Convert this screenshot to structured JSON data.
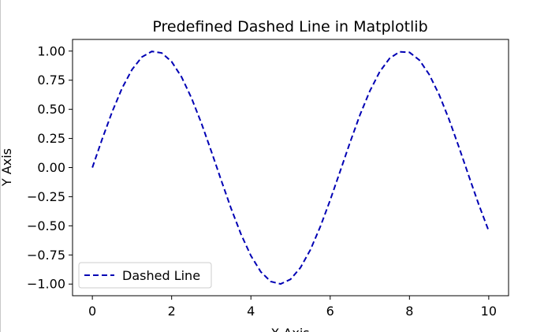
{
  "chart_data": {
    "type": "line",
    "title": "Predefined Dashed Line in Matplotlib",
    "xlabel": "X Axis",
    "ylabel": "Y Axis",
    "xlim": [
      -0.5,
      10.5
    ],
    "ylim": [
      -1.1,
      1.1
    ],
    "x_ticks": [
      0,
      2,
      4,
      6,
      8,
      10
    ],
    "x_tick_labels": [
      "0",
      "2",
      "4",
      "6",
      "8",
      "10"
    ],
    "y_ticks": [
      1.0,
      0.75,
      0.5,
      0.25,
      0.0,
      -0.25,
      -0.5,
      -0.75,
      -1.0
    ],
    "y_tick_labels": [
      "1.00",
      "0.75",
      "0.50",
      "0.25",
      "0.00",
      "−0.25",
      "−0.50",
      "−0.75",
      "−1.00"
    ],
    "grid": false,
    "legend": {
      "placement": "lower-left",
      "entries": [
        "Dashed Line"
      ]
    },
    "series": [
      {
        "name": "Dashed Line",
        "color": "#0000b4",
        "linestyle": "dashed",
        "x": [
          0,
          0.25,
          0.5,
          0.75,
          1.0,
          1.25,
          1.5,
          1.75,
          2.0,
          2.25,
          2.5,
          2.75,
          3.0,
          3.25,
          3.5,
          3.75,
          4.0,
          4.25,
          4.5,
          4.75,
          5.0,
          5.25,
          5.5,
          5.75,
          6.0,
          6.25,
          6.5,
          6.75,
          7.0,
          7.25,
          7.5,
          7.75,
          8.0,
          8.25,
          8.5,
          8.75,
          9.0,
          9.25,
          9.5,
          9.75,
          10.0
        ],
        "y": [
          0.0,
          0.247,
          0.479,
          0.682,
          0.841,
          0.949,
          0.997,
          0.984,
          0.909,
          0.778,
          0.598,
          0.382,
          0.141,
          -0.108,
          -0.351,
          -0.572,
          -0.757,
          -0.895,
          -0.978,
          -0.999,
          -0.959,
          -0.859,
          -0.706,
          -0.508,
          -0.279,
          -0.033,
          0.215,
          0.451,
          0.657,
          0.823,
          0.938,
          0.994,
          0.989,
          0.923,
          0.798,
          0.625,
          0.412,
          0.174,
          -0.075,
          -0.319,
          -0.544
        ]
      }
    ]
  }
}
